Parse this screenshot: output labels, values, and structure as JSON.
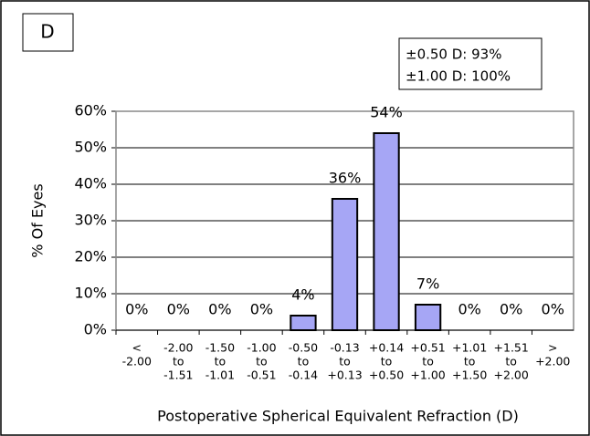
{
  "panel_label": "D",
  "annotations": [
    "±0.50 D: 93%",
    "±1.00 D: 100%"
  ],
  "chart_data": {
    "type": "bar",
    "xlabel": "Postoperative Spherical Equivalent Refraction (D)",
    "ylabel": "% Of Eyes",
    "categories": [
      [
        "<",
        "-2.00"
      ],
      [
        "-2.00",
        "to",
        "-1.51"
      ],
      [
        "-1.50",
        "to",
        "-1.01"
      ],
      [
        "-1.00",
        "to",
        "-0.51"
      ],
      [
        "-0.50",
        "to",
        "-0.14"
      ],
      [
        "-0.13",
        "to",
        "+0.13"
      ],
      [
        "+0.14",
        "to",
        "+0.50"
      ],
      [
        "+0.51",
        "to",
        "+1.00"
      ],
      [
        "+1.01",
        "to",
        "+1.50"
      ],
      [
        "+1.51",
        "to",
        "+2.00"
      ],
      [
        ">",
        "+2.00"
      ]
    ],
    "values": [
      0,
      0,
      0,
      0,
      4,
      36,
      54,
      7,
      0,
      0,
      0
    ],
    "value_labels": [
      "0%",
      "0%",
      "0%",
      "0%",
      "4%",
      "36%",
      "54%",
      "7%",
      "0%",
      "0%",
      "0%"
    ],
    "color": "#a6a6f5",
    "ylim": [
      0,
      60
    ],
    "yticks": [
      {
        "value": 0,
        "label": "0%"
      },
      {
        "value": 10,
        "label": "10%"
      },
      {
        "value": 20,
        "label": "20%"
      },
      {
        "value": 30,
        "label": "30%"
      },
      {
        "value": 40,
        "label": "40%"
      },
      {
        "value": 50,
        "label": "50%"
      },
      {
        "value": 60,
        "label": "60%"
      }
    ],
    "grid": true
  }
}
